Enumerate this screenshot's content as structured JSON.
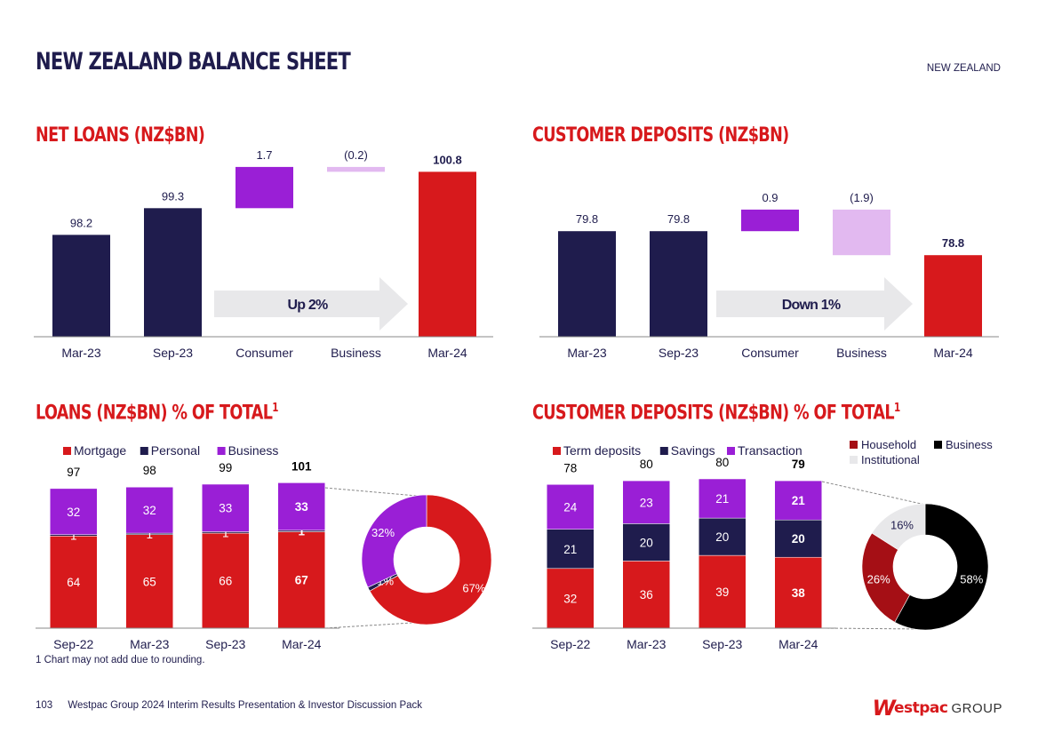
{
  "page": {
    "title": "NEW ZEALAND BALANCE SHEET",
    "region": "NEW ZEALAND",
    "footnote": "1 Chart may not add due to rounding.",
    "page_number": "103",
    "footer_text": "Westpac Group 2024 Interim Results Presentation & Investor Discussion Pack",
    "logo_mark": "W",
    "logo_name": "estpac",
    "logo_group": "GROUP"
  },
  "colors": {
    "navy": "#1f1c4d",
    "red": "#d7191c",
    "purple": "#9a1fd6",
    "light_purple": "#e2b9f0",
    "dark_red": "#a50f15",
    "black": "#000000",
    "light_grey": "#e8e8ea"
  },
  "chart_data": [
    {
      "id": "net_loans",
      "type": "bar",
      "subtype": "waterfall",
      "title": "NET LOANS (NZ$BN)",
      "categories": [
        "Mar-23",
        "Sep-23",
        "Consumer",
        "Business",
        "Mar-24"
      ],
      "values": [
        98.2,
        99.3,
        1.7,
        -0.2,
        100.8
      ],
      "labels": [
        "98.2",
        "99.3",
        "1.7",
        "(0.2)",
        "100.8"
      ],
      "kinds": [
        "total",
        "total",
        "increase",
        "decrease",
        "total"
      ],
      "arrow_label": "Up 2%"
    },
    {
      "id": "customer_deposits",
      "type": "bar",
      "subtype": "waterfall",
      "title": "CUSTOMER DEPOSITS (NZ$BN)",
      "categories": [
        "Mar-23",
        "Sep-23",
        "Consumer",
        "Business",
        "Mar-24"
      ],
      "values": [
        79.8,
        79.8,
        0.9,
        -1.9,
        78.8
      ],
      "labels": [
        "79.8",
        "79.8",
        "0.9",
        "(1.9)",
        "78.8"
      ],
      "kinds": [
        "total",
        "total",
        "increase",
        "decrease",
        "total"
      ],
      "arrow_label": "Down 1%"
    },
    {
      "id": "loans_mix",
      "type": "bar",
      "subtype": "stacked",
      "title": "LOANS (NZ$BN) % OF TOTAL",
      "title_sup": "1",
      "categories": [
        "Sep-22",
        "Mar-23",
        "Sep-23",
        "Mar-24"
      ],
      "totals": [
        97,
        98,
        99,
        101
      ],
      "series": [
        {
          "name": "Mortgage",
          "values": [
            64,
            65,
            66,
            67
          ]
        },
        {
          "name": "Personal",
          "values": [
            1,
            1,
            1,
            1
          ]
        },
        {
          "name": "Business",
          "values": [
            32,
            32,
            33,
            33
          ]
        }
      ]
    },
    {
      "id": "loans_donut",
      "type": "pie",
      "subtype": "donut",
      "slices": [
        {
          "name": "Mortgage",
          "value": 67,
          "label": "67%"
        },
        {
          "name": "Personal",
          "value": 1,
          "label": "1%"
        },
        {
          "name": "Business",
          "value": 32,
          "label": "32%"
        }
      ]
    },
    {
      "id": "deposits_mix",
      "type": "bar",
      "subtype": "stacked",
      "title": "CUSTOMER DEPOSITS (NZ$BN) % OF TOTAL",
      "title_sup": "1",
      "categories": [
        "Sep-22",
        "Mar-23",
        "Sep-23",
        "Mar-24"
      ],
      "totals": [
        78,
        80,
        80,
        79
      ],
      "series": [
        {
          "name": "Term deposits",
          "values": [
            32,
            36,
            39,
            38
          ]
        },
        {
          "name": "Savings",
          "values": [
            21,
            20,
            20,
            20
          ]
        },
        {
          "name": "Transaction",
          "values": [
            24,
            23,
            21,
            21
          ]
        }
      ]
    },
    {
      "id": "deposits_donut",
      "type": "pie",
      "subtype": "donut",
      "legend": [
        "Household",
        "Business",
        "Institutional"
      ],
      "slices": [
        {
          "name": "Business",
          "value": 58,
          "label": "58%"
        },
        {
          "name": "Household",
          "value": 26,
          "label": "26%"
        },
        {
          "name": "Institutional",
          "value": 16,
          "label": "16%"
        }
      ]
    }
  ]
}
